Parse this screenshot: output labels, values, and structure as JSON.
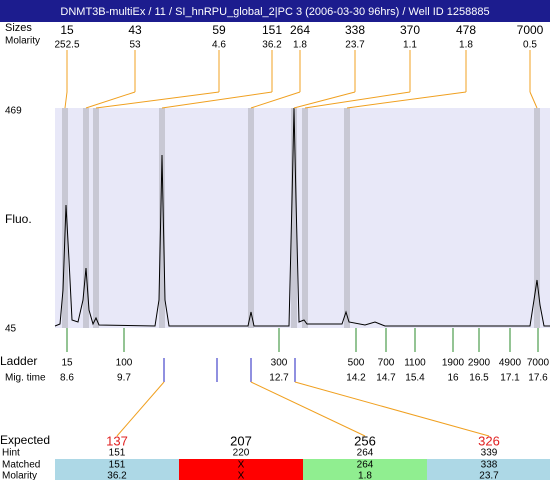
{
  "header": {
    "title": "DNMT3B-multiEx / 11 / SI_hnRPU_global_2|PC 3 (2006-03-30 96hrs) / Well ID 1258885"
  },
  "peaks": {
    "size_label": "Sizes",
    "molarity_label": "Molarity",
    "items": [
      {
        "size": 15,
        "molarity": 252.5
      },
      {
        "size": 43,
        "molarity": 53
      },
      {
        "size": 59,
        "molarity": 4.6
      },
      {
        "size": 151,
        "molarity": 36.2
      },
      {
        "size": 264,
        "molarity": 1.8
      },
      {
        "size": 338,
        "molarity": 23.7
      },
      {
        "size": 370,
        "molarity": 1.1
      },
      {
        "size": 478,
        "molarity": 1.8
      },
      {
        "size": 7000,
        "molarity": 0.5
      }
    ]
  },
  "plot": {
    "y_label": "Fluo.",
    "y_max_label": 469,
    "y_min_label": 45
  },
  "ladder": {
    "size_label": "Ladder",
    "time_label": "Mig. time",
    "items": [
      {
        "size": 15,
        "time": 8.6
      },
      {
        "size": 100,
        "time": 9.7
      },
      {
        "size": 300,
        "time": 12.7
      },
      {
        "size": 500,
        "time": 14.2
      },
      {
        "size": 700,
        "time": 14.7
      },
      {
        "size": 1100,
        "time": 15.4
      },
      {
        "size": 1900,
        "time": 16
      },
      {
        "size": 2900,
        "time": 16.5
      },
      {
        "size": 4900,
        "time": 17.1
      },
      {
        "size": 7000,
        "time": 17.6
      }
    ]
  },
  "expected": {
    "labels": [
      "Expected",
      "Hint",
      "Matched",
      "Molarity"
    ],
    "items": [
      {
        "expected": 137,
        "color": "#e02020",
        "hint": 151,
        "matched": 151,
        "molarity": 36.2,
        "cell_color": "#add8e6"
      },
      {
        "expected": 207,
        "color": "#000000",
        "hint": 220,
        "matched": "X",
        "molarity": "X",
        "cell_color": "#ff0000"
      },
      {
        "expected": 256,
        "color": "#000000",
        "hint": 264,
        "matched": 264,
        "molarity": 1.8,
        "cell_color": "#90ee90"
      },
      {
        "expected": 326,
        "color": "#e02020",
        "hint": 339,
        "matched": 338,
        "molarity": 23.7,
        "cell_color": "#add8e6"
      }
    ]
  }
}
